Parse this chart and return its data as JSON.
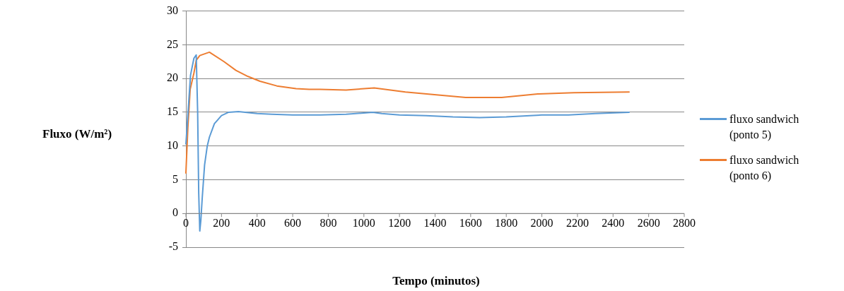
{
  "chart_data": {
    "type": "line",
    "xlabel": "Tempo (minutos)",
    "ylabel": "Fluxo (W/m²)",
    "xlim": [
      0,
      2800
    ],
    "xticks": [
      0,
      200,
      400,
      600,
      800,
      1000,
      1200,
      1400,
      1600,
      1800,
      2000,
      2200,
      2400,
      2600,
      2800
    ],
    "ylim": [
      -5,
      30
    ],
    "yticks": [
      -5,
      0,
      5,
      10,
      15,
      20,
      25,
      30
    ],
    "grid": "y",
    "legend": "right",
    "marker": "none",
    "line_style": "solid",
    "series": [
      {
        "name": "fluxo sandwich (ponto 5)",
        "color": "#5b9bd5",
        "x": [
          0,
          26,
          45,
          58,
          66,
          72,
          78,
          84,
          92,
          105,
          120,
          132,
          160,
          200,
          240,
          295,
          400,
          484,
          600,
          754,
          900,
          1050,
          1100,
          1200,
          1350,
          1500,
          1650,
          1800,
          2000,
          2150,
          2300,
          2490
        ],
        "values": [
          10.3,
          20.5,
          23.0,
          23.5,
          15,
          3,
          -2.6,
          -1,
          2.4,
          7.2,
          10,
          11.3,
          13.3,
          14.5,
          15.0,
          15.1,
          14.8,
          14.7,
          14.6,
          14.6,
          14.7,
          15.0,
          14.8,
          14.6,
          14.5,
          14.3,
          14.2,
          14.3,
          14.6,
          14.6,
          14.8,
          15.0
        ]
      },
      {
        "name": "fluxo sandwich (ponto 6)",
        "color": "#ed7d31",
        "x": [
          0,
          11,
          24,
          45,
          58,
          78,
          132,
          214,
          281,
          349,
          416,
          511,
          619,
          693,
          754,
          900,
          1058,
          1233,
          1396,
          1572,
          1774,
          1977,
          2180,
          2490
        ],
        "values": [
          6.0,
          12.7,
          18.4,
          20.8,
          22.7,
          23.4,
          23.9,
          22.5,
          21.2,
          20.3,
          19.6,
          18.9,
          18.5,
          18.4,
          18.4,
          18.3,
          18.6,
          18.0,
          17.6,
          17.2,
          17.2,
          17.7,
          17.9,
          18.0
        ]
      }
    ]
  }
}
